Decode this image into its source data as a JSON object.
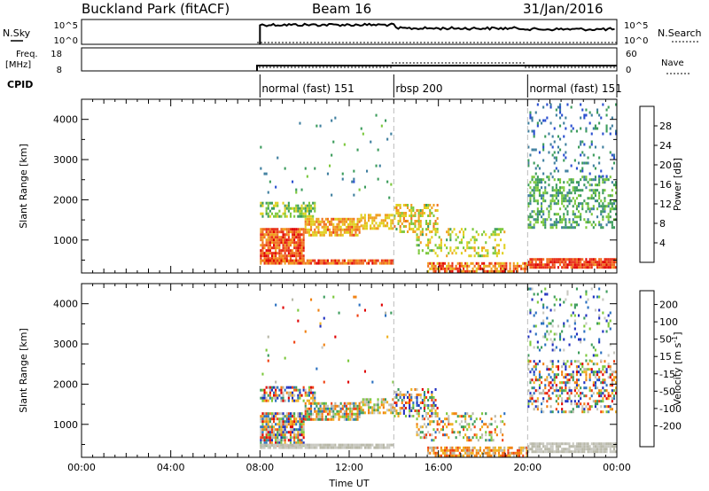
{
  "header": {
    "station": "Buckland Park (fitACF)",
    "beam": "Beam 16",
    "date": "31/Jan/2016"
  },
  "top_panels": {
    "nsky_label": "N.Sky",
    "nsearch_label": "N.Search",
    "nsky_ticks": [
      "10^5",
      "10^0"
    ],
    "nsearch_ticks": [
      "10^5",
      "10^0"
    ],
    "freq_label": "Freq.",
    "freq_unit": "[MHz]",
    "freq_ticks": [
      "18",
      "8"
    ],
    "nave_label": "Nave",
    "nave_ticks": [
      "60",
      "0"
    ],
    "cpid_label": "CPID"
  },
  "cpid_segments": [
    {
      "label": "normal (fast) 151",
      "start_hour": 8,
      "end_hour": 14
    },
    {
      "label": "rbsp 200",
      "start_hour": 14,
      "end_hour": 20
    },
    {
      "label": "normal (fast) 151",
      "start_hour": 20,
      "end_hour": 24
    }
  ],
  "colors": {
    "power": [
      "#0010e0",
      "#2a4fd0",
      "#3f7f9f",
      "#3c9c5c",
      "#7cc83c",
      "#e0d020",
      "#f0a020",
      "#f07020",
      "#e83018",
      "#e00000"
    ],
    "velocity": [
      "#e00000",
      "#f04010",
      "#f08010",
      "#f0b020",
      "#b8b8a8",
      "#c8c8c0",
      "#7cc83c",
      "#3c9c5c",
      "#2a70c0",
      "#2030c0"
    ]
  },
  "chart_data": [
    {
      "type": "heatmap",
      "name_hidden": true,
      "parameter": "Power",
      "xlabel": "",
      "ylabel": "Slant Range [km]",
      "xlim_hours": [
        0,
        24
      ],
      "ylim_km": [
        180,
        4500
      ],
      "x_ticks": [
        "00:00",
        "04:00",
        "08:00",
        "12:00",
        "16:00",
        "20:00",
        "00:00"
      ],
      "y_ticks": [
        1000,
        2000,
        3000,
        4000
      ],
      "colorbar": {
        "label": "Power [dB]",
        "ticks": [
          4,
          8,
          12,
          16,
          20,
          24,
          28
        ],
        "range": [
          0,
          32
        ]
      },
      "echo_regions": [
        {
          "h0": 8.0,
          "h1": 10.0,
          "r0": 500,
          "r1": 1300,
          "v0": 20,
          "v1": 30,
          "density": 0.85
        },
        {
          "h0": 10.0,
          "h1": 12.5,
          "r0": 1150,
          "r1": 1550,
          "v0": 16,
          "v1": 26,
          "density": 0.75
        },
        {
          "h0": 12.5,
          "h1": 14.0,
          "r0": 1300,
          "r1": 1650,
          "v0": 16,
          "v1": 22,
          "density": 0.55
        },
        {
          "h0": 8.0,
          "h1": 10.5,
          "r0": 1600,
          "r1": 1950,
          "v0": 10,
          "v1": 18,
          "density": 0.6
        },
        {
          "h0": 8.0,
          "h1": 14.0,
          "r0": 400,
          "r1": 520,
          "v0": 20,
          "v1": 30,
          "density": 0.9
        },
        {
          "h0": 14.0,
          "h1": 16.0,
          "r0": 1200,
          "r1": 1900,
          "v0": 12,
          "v1": 24,
          "density": 0.45
        },
        {
          "h0": 15.0,
          "h1": 19.0,
          "r0": 600,
          "r1": 1300,
          "v0": 12,
          "v1": 20,
          "density": 0.3
        },
        {
          "h0": 15.5,
          "h1": 20.0,
          "r0": 200,
          "r1": 450,
          "v0": 18,
          "v1": 30,
          "density": 0.7
        },
        {
          "h0": 20.0,
          "h1": 24.0,
          "r0": 350,
          "r1": 550,
          "v0": 22,
          "v1": 30,
          "density": 0.9
        },
        {
          "h0": 20.0,
          "h1": 24.0,
          "r0": 1300,
          "r1": 2600,
          "v0": 8,
          "v1": 16,
          "density": 0.4
        },
        {
          "h0": 20.0,
          "h1": 24.0,
          "r0": 2600,
          "r1": 4400,
          "v0": 4,
          "v1": 12,
          "density": 0.12
        },
        {
          "h0": 8.0,
          "h1": 14.0,
          "r0": 2000,
          "r1": 4200,
          "v0": 6,
          "v1": 14,
          "density": 0.02
        }
      ]
    },
    {
      "type": "heatmap",
      "name_hidden": true,
      "parameter": "Velocity",
      "xlabel": "Time UT",
      "ylabel": "Slant Range [km]",
      "xlim_hours": [
        0,
        24
      ],
      "ylim_km": [
        180,
        4500
      ],
      "x_ticks": [
        "00:00",
        "04:00",
        "08:00",
        "12:00",
        "16:00",
        "20:00",
        "00:00"
      ],
      "y_ticks": [
        1000,
        2000,
        3000,
        4000
      ],
      "colorbar": {
        "label": "Velocity [m s",
        "label_sup": "-1",
        "label_end": "]",
        "ticks": [
          "200",
          "100",
          "50",
          "15",
          "-15",
          "-50",
          "-100",
          "-200"
        ]
      },
      "echo_regions": [
        {
          "h0": 8.0,
          "h1": 10.0,
          "r0": 500,
          "r1": 1300,
          "v0": -250,
          "v1": 250,
          "density": 0.85
        },
        {
          "h0": 10.0,
          "h1": 12.5,
          "r0": 1150,
          "r1": 1550,
          "v0": -200,
          "v1": 200,
          "density": 0.75
        },
        {
          "h0": 12.5,
          "h1": 14.0,
          "r0": 1300,
          "r1": 1650,
          "v0": -150,
          "v1": 150,
          "density": 0.55
        },
        {
          "h0": 8.0,
          "h1": 10.5,
          "r0": 1600,
          "r1": 1950,
          "v0": -250,
          "v1": 250,
          "density": 0.6
        },
        {
          "h0": 8.0,
          "h1": 14.0,
          "r0": 400,
          "r1": 520,
          "v0": -10,
          "v1": 10,
          "density": 0.9
        },
        {
          "h0": 14.0,
          "h1": 16.0,
          "r0": 1200,
          "r1": 1900,
          "v0": -250,
          "v1": 250,
          "density": 0.45
        },
        {
          "h0": 15.0,
          "h1": 19.0,
          "r0": 600,
          "r1": 1300,
          "v0": -200,
          "v1": 200,
          "density": 0.3
        },
        {
          "h0": 15.5,
          "h1": 20.0,
          "r0": 200,
          "r1": 450,
          "v0": -200,
          "v1": 0,
          "density": 0.7
        },
        {
          "h0": 20.0,
          "h1": 24.0,
          "r0": 350,
          "r1": 550,
          "v0": -10,
          "v1": 10,
          "density": 0.9
        },
        {
          "h0": 20.0,
          "h1": 24.0,
          "r0": 1300,
          "r1": 2600,
          "v0": -250,
          "v1": 250,
          "density": 0.4
        },
        {
          "h0": 20.0,
          "h1": 24.0,
          "r0": 2600,
          "r1": 4400,
          "v0": 0,
          "v1": 250,
          "density": 0.12
        },
        {
          "h0": 8.0,
          "h1": 14.0,
          "r0": 2000,
          "r1": 4200,
          "v0": -250,
          "v1": 250,
          "density": 0.02
        }
      ]
    }
  ]
}
